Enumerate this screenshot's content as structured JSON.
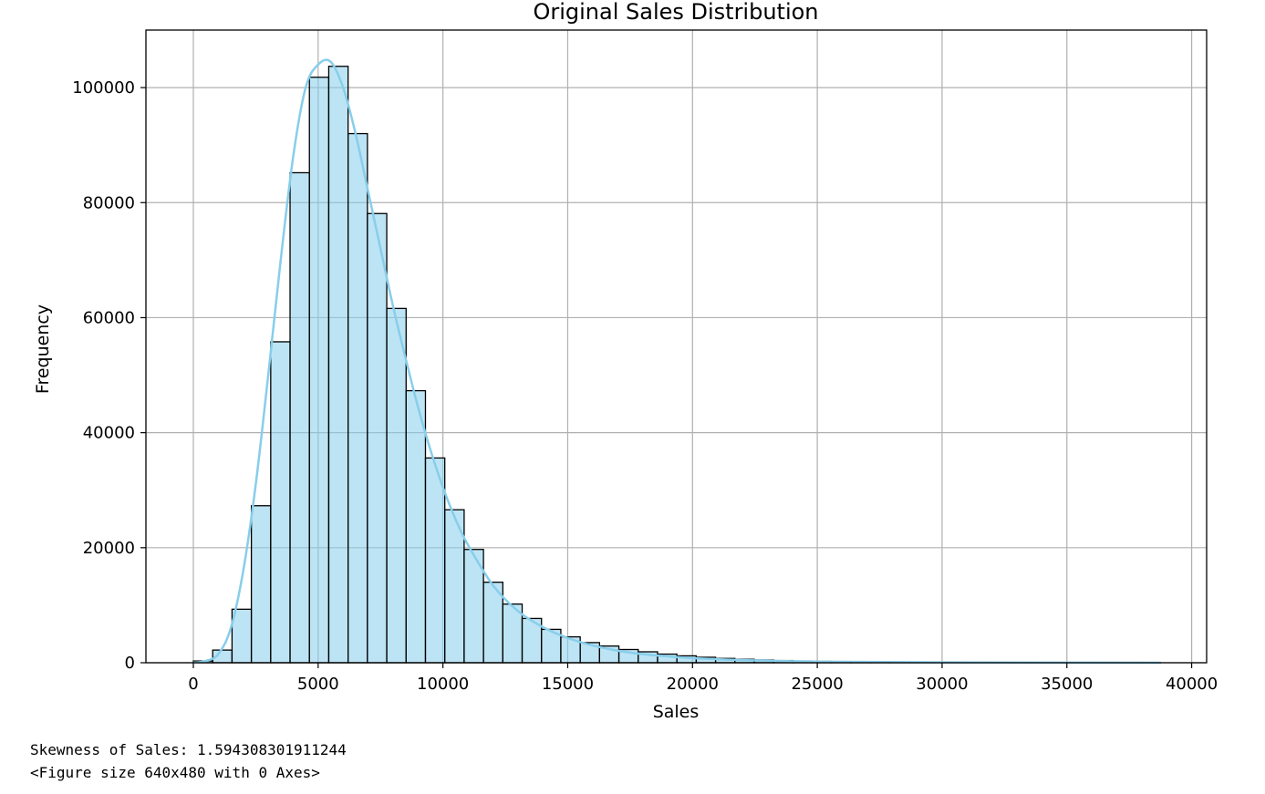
{
  "chart_data": {
    "type": "bar",
    "title": "Original Sales Distribution",
    "xlabel": "Sales",
    "ylabel": "Frequency",
    "xlim": [
      -1900,
      40600
    ],
    "ylim": [
      0,
      110000
    ],
    "grid": true,
    "bar_color": "#87ceeb",
    "bar_edge_color": "#000000",
    "kde_color": "#87ceeb",
    "xticks": [
      0,
      5000,
      10000,
      15000,
      20000,
      25000,
      30000,
      35000,
      40000
    ],
    "xtick_labels": [
      "0",
      "5000",
      "10000",
      "15000",
      "20000",
      "25000",
      "30000",
      "35000",
      "40000"
    ],
    "yticks": [
      0,
      20000,
      40000,
      60000,
      80000,
      100000
    ],
    "ytick_labels": [
      "0",
      "20000",
      "40000",
      "60000",
      "80000",
      "100000"
    ],
    "bin_edges": [
      0,
      775,
      1550,
      2325,
      3100,
      3875,
      4650,
      5425,
      6200,
      6975,
      7750,
      8525,
      9300,
      10075,
      10850,
      11625,
      12400,
      13175,
      13950,
      14725,
      15500,
      16275,
      17050,
      17825,
      18600,
      19375,
      20150,
      20925,
      21700,
      22475,
      23250,
      24025,
      24800,
      25575,
      26350,
      27125,
      27900,
      28675,
      29450,
      30225,
      31000,
      31775,
      32550,
      33325,
      34100,
      34875,
      35650,
      36425,
      37200,
      37975,
      38750
    ],
    "counts": [
      300,
      2200,
      9300,
      27300,
      55800,
      85200,
      101800,
      103700,
      92000,
      78100,
      61600,
      47300,
      35600,
      26600,
      19700,
      14000,
      10200,
      7700,
      5800,
      4500,
      3500,
      2900,
      2300,
      1900,
      1500,
      1200,
      950,
      750,
      600,
      480,
      380,
      300,
      240,
      190,
      150,
      120,
      100,
      80,
      70,
      60,
      50,
      40,
      35,
      30,
      25,
      20,
      15,
      12,
      10,
      8
    ],
    "kde": {
      "x": [
        0,
        500,
        1000,
        1500,
        2000,
        2500,
        3000,
        3500,
        4000,
        4500,
        5000,
        5500,
        6000,
        6500,
        7000,
        7500,
        8000,
        8500,
        9000,
        9500,
        10000,
        10500,
        11000,
        12000,
        13000,
        14000,
        15000,
        16000,
        17000,
        18000,
        19000,
        20000,
        22000,
        24000,
        26000,
        30000,
        35000,
        38750
      ],
      "y": [
        0,
        300,
        1500,
        6000,
        16000,
        31000,
        50000,
        70000,
        88000,
        100000,
        104000,
        104500,
        100000,
        92000,
        82000,
        72000,
        62000,
        53000,
        44500,
        37000,
        30500,
        25000,
        20500,
        13500,
        9000,
        6200,
        4300,
        3000,
        2100,
        1500,
        1100,
        800,
        450,
        250,
        150,
        60,
        20,
        5
      ]
    }
  },
  "output": {
    "skewness_line": "Skewness of Sales: 1.594308301911244",
    "figure_line": "<Figure size 640x480 with 0 Axes>"
  }
}
